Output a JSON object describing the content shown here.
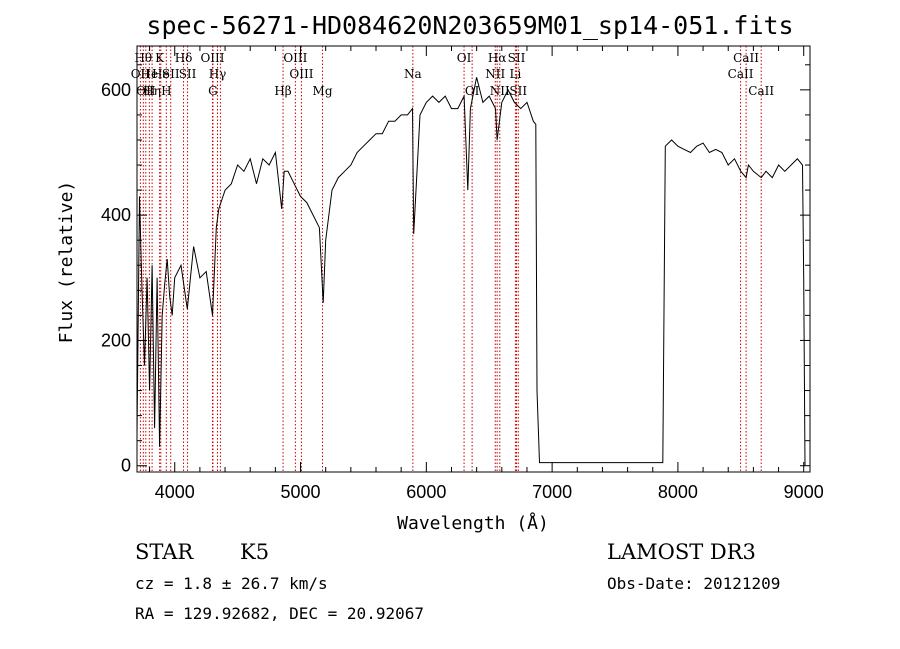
{
  "chart_data": {
    "type": "line",
    "title": "spec-56271-HD084620N203659M01_sp14-051.fits",
    "xlabel": "Wavelength (Å)",
    "ylabel": "Flux (relative)",
    "xlim": [
      3700,
      9050
    ],
    "ylim": [
      -10,
      670
    ],
    "xticks": [
      4000,
      5000,
      6000,
      7000,
      8000,
      9000
    ],
    "yticks": [
      0,
      200,
      400,
      600
    ],
    "line_color": "#000000",
    "marker_color": "#cc0000",
    "spectrum": {
      "x": [
        3700,
        3720,
        3740,
        3760,
        3780,
        3800,
        3820,
        3840,
        3860,
        3880,
        3900,
        3920,
        3940,
        3960,
        3980,
        4000,
        4050,
        4100,
        4150,
        4200,
        4250,
        4300,
        4330,
        4350,
        4400,
        4450,
        4500,
        4550,
        4600,
        4650,
        4700,
        4750,
        4800,
        4850,
        4870,
        4900,
        4950,
        5000,
        5050,
        5100,
        5150,
        5180,
        5200,
        5250,
        5300,
        5350,
        5400,
        5450,
        5500,
        5550,
        5600,
        5650,
        5700,
        5750,
        5800,
        5850,
        5890,
        5900,
        5950,
        6000,
        6050,
        6100,
        6150,
        6200,
        6250,
        6300,
        6330,
        6350,
        6400,
        6450,
        6500,
        6550,
        6563,
        6600,
        6650,
        6700,
        6750,
        6800,
        6850,
        6870,
        6880,
        6900,
        7000,
        7100,
        7200,
        7300,
        7400,
        7500,
        7600,
        7700,
        7800,
        7850,
        7880,
        7900,
        7950,
        8000,
        8050,
        8100,
        8150,
        8200,
        8250,
        8300,
        8350,
        8400,
        8450,
        8500,
        8542,
        8560,
        8600,
        8662,
        8700,
        8750,
        8800,
        8850,
        8900,
        8950,
        8990,
        9000,
        9010
      ],
      "y": [
        50,
        430,
        280,
        160,
        300,
        120,
        320,
        60,
        300,
        30,
        240,
        290,
        330,
        270,
        240,
        300,
        320,
        250,
        350,
        300,
        310,
        240,
        380,
        410,
        440,
        450,
        480,
        470,
        490,
        450,
        490,
        480,
        500,
        410,
        470,
        470,
        450,
        430,
        420,
        400,
        380,
        260,
        360,
        440,
        460,
        470,
        480,
        500,
        510,
        520,
        530,
        530,
        550,
        550,
        560,
        560,
        570,
        370,
        560,
        580,
        590,
        580,
        590,
        570,
        570,
        590,
        440,
        570,
        620,
        580,
        590,
        570,
        520,
        580,
        600,
        580,
        570,
        580,
        550,
        545,
        120,
        5,
        5,
        5,
        5,
        5,
        5,
        5,
        5,
        5,
        5,
        5,
        5,
        510,
        520,
        510,
        505,
        500,
        510,
        515,
        500,
        505,
        500,
        480,
        490,
        470,
        460,
        480,
        470,
        460,
        470,
        460,
        480,
        470,
        480,
        490,
        480,
        300,
        0
      ]
    },
    "line_markers": [
      {
        "wavelength": 3727,
        "label": "OII",
        "row": 2
      },
      {
        "wavelength": 3750,
        "label": "Hθ",
        "row": 1
      },
      {
        "wavelength": 3770,
        "label": "OII",
        "row": 3
      },
      {
        "wavelength": 3798,
        "label": "He",
        "row": 2
      },
      {
        "wavelength": 3820,
        "label": "Hη",
        "row": 3
      },
      {
        "wavelength": 3880,
        "label": "K",
        "row": 1
      },
      {
        "wavelength": 3889,
        "label": "He",
        "row": 2
      },
      {
        "wavelength": 3933,
        "label": "H",
        "row": 3
      },
      {
        "wavelength": 3968,
        "label": "SII",
        "row": 2
      },
      {
        "wavelength": 4070,
        "label": "Hδ",
        "row": 1
      },
      {
        "wavelength": 4102,
        "label": "SII",
        "row": 2
      },
      {
        "wavelength": 4300,
        "label": "OIII",
        "row": 1
      },
      {
        "wavelength": 4304,
        "label": "G",
        "row": 3
      },
      {
        "wavelength": 4340,
        "label": "Hγ",
        "row": 2
      },
      {
        "wavelength": 4363,
        "label": "",
        "row": 0
      },
      {
        "wavelength": 4861,
        "label": "Hβ",
        "row": 3
      },
      {
        "wavelength": 4959,
        "label": "OIII",
        "row": 1
      },
      {
        "wavelength": 5007,
        "label": "OIII",
        "row": 2
      },
      {
        "wavelength": 5175,
        "label": "Mg",
        "row": 3
      },
      {
        "wavelength": 5893,
        "label": "Na",
        "row": 2
      },
      {
        "wavelength": 6300,
        "label": "OI",
        "row": 1
      },
      {
        "wavelength": 6364,
        "label": "OI",
        "row": 3
      },
      {
        "wavelength": 6548,
        "label": "NII",
        "row": 2
      },
      {
        "wavelength": 6563,
        "label": "Hα",
        "row": 1
      },
      {
        "wavelength": 6584,
        "label": "NII",
        "row": 3
      },
      {
        "wavelength": 6708,
        "label": "Li",
        "row": 2
      },
      {
        "wavelength": 6717,
        "label": "SII",
        "row": 1
      },
      {
        "wavelength": 6731,
        "label": "SII",
        "row": 3
      },
      {
        "wavelength": 8498,
        "label": "CaII",
        "row": 2
      },
      {
        "wavelength": 8542,
        "label": "CaII",
        "row": 1
      },
      {
        "wavelength": 8662,
        "label": "CaII",
        "row": 3
      }
    ]
  },
  "info": {
    "object_class": "STAR",
    "subclass": "K5",
    "survey": "LAMOST DR3",
    "cz_line": "cz = 1.8 ± 26.7 km/s",
    "obs_date_line": "Obs-Date: 20121209",
    "coords_line": "RA = 129.92682, DEC =  20.92067"
  }
}
